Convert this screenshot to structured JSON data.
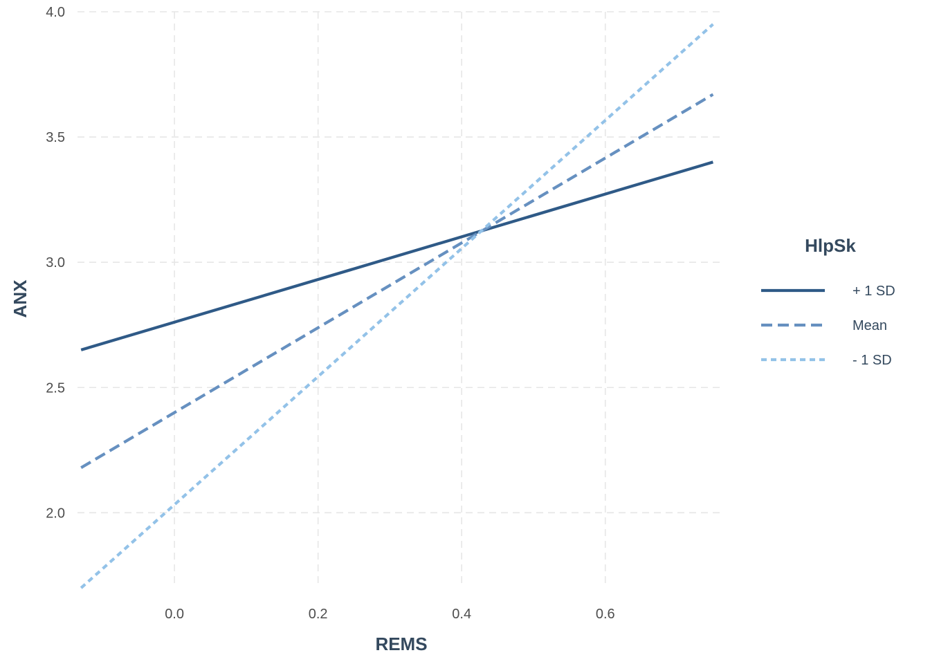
{
  "chart_data": {
    "type": "line",
    "xlabel": "REMS",
    "ylabel": "ANX",
    "xlim": [
      -0.135,
      0.765
    ],
    "ylim": [
      1.7,
      4.0
    ],
    "x_ticks": [
      0.0,
      0.2,
      0.4,
      0.6
    ],
    "x_tick_labels": [
      "0.0",
      "0.2",
      "0.4",
      "0.6"
    ],
    "y_ticks": [
      2.0,
      2.5,
      3.0,
      3.5,
      4.0
    ],
    "y_tick_labels": [
      "2.0",
      "2.5",
      "3.0",
      "3.5",
      "4.0"
    ],
    "grid": true,
    "legend": {
      "title": "HlpSk",
      "position": "right"
    },
    "series": [
      {
        "name": "+ 1 SD",
        "x": [
          -0.13,
          0.75
        ],
        "y": [
          2.65,
          3.4
        ],
        "color": "#2f5a87",
        "dash": "solid"
      },
      {
        "name": "Mean",
        "x": [
          -0.13,
          0.75
        ],
        "y": [
          2.18,
          3.67
        ],
        "color": "#6690c0",
        "dash": "dashed"
      },
      {
        "name": "- 1 SD",
        "x": [
          -0.13,
          0.75
        ],
        "y": [
          1.7,
          3.95
        ],
        "color": "#93c2e8",
        "dash": "dotted"
      }
    ]
  }
}
